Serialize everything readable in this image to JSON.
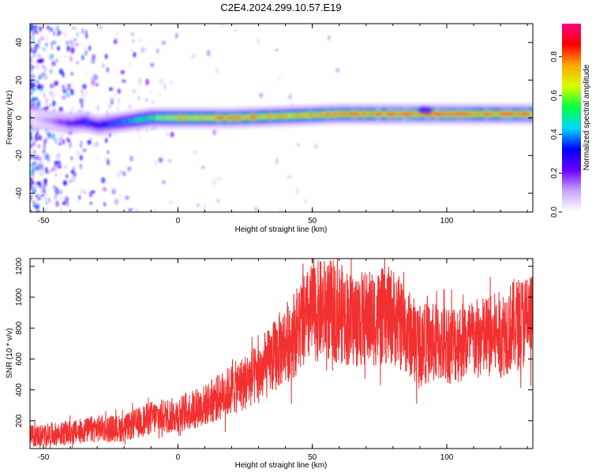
{
  "title": "C2E4.2024.299.10.57.E19",
  "chart_data": [
    {
      "type": "heatmap",
      "xlabel": "Height of straight line (km)",
      "ylabel": "Frequency (Hz)",
      "xlim": [
        -55,
        132
      ],
      "ylim": [
        -50,
        50
      ],
      "xticks": [
        -50,
        0,
        50,
        100
      ],
      "yticks": [
        -40,
        -20,
        0,
        20,
        40
      ],
      "colorbar": {
        "label": "Normalized spectral amplitude",
        "range": [
          0.0,
          0.97
        ],
        "ticks": [
          0.0,
          0.2,
          0.4,
          0.6,
          0.8
        ],
        "colors": [
          "#ffffff",
          "#c9a6ff",
          "#6a00ff",
          "#0000ff",
          "#00d7ff",
          "#00ff40",
          "#d8ff00",
          "#ffaa00",
          "#ff0000",
          "#ff0080"
        ]
      },
      "ridge": {
        "x": [
          -55,
          -40,
          -35,
          -30,
          -20,
          -10,
          0,
          20,
          40,
          60,
          80,
          100,
          132
        ],
        "y": [
          0,
          -3,
          -2,
          -4,
          -2,
          0,
          0,
          0,
          1,
          2,
          2,
          2,
          2
        ],
        "amplitude": [
          0.05,
          0.25,
          0.35,
          0.3,
          0.4,
          0.55,
          0.7,
          0.8,
          0.75,
          0.8,
          0.85,
          0.85,
          0.8
        ]
      },
      "grid": false,
      "legend": "colorbar-right"
    },
    {
      "type": "line",
      "xlabel": "Height of straight line (km)",
      "ylabel": "SNR (10 * v/v)",
      "xlim": [
        -55,
        132
      ],
      "ylim": [
        20,
        1250
      ],
      "xticks": [
        -50,
        0,
        50,
        100
      ],
      "yticks": [
        200,
        400,
        600,
        800,
        1000,
        1200
      ],
      "color": "#f23030",
      "series": [
        {
          "x": [
            -55,
            -40,
            -30,
            -20,
            -10,
            0,
            10,
            20,
            30,
            40,
            50,
            55,
            60,
            65,
            70,
            80,
            85,
            90,
            95,
            100,
            110,
            120,
            125,
            132
          ],
          "y": [
            100,
            120,
            150,
            150,
            220,
            240,
            300,
            400,
            500,
            700,
            900,
            920,
            900,
            850,
            860,
            880,
            780,
            700,
            700,
            700,
            720,
            760,
            820,
            860
          ]
        }
      ],
      "grid": false
    }
  ]
}
